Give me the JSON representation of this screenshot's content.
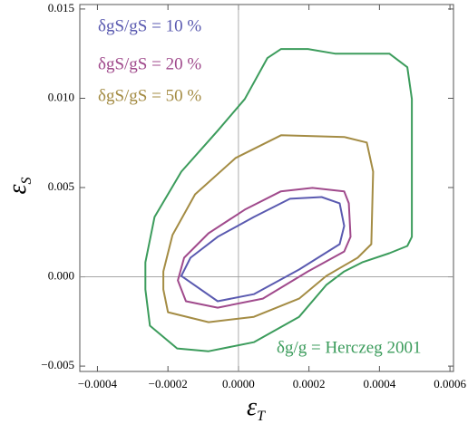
{
  "chart_data": {
    "type": "contour",
    "xlabel": "ε",
    "xlabel_subscript": "T",
    "ylabel": "ε",
    "ylabel_subscript": "S",
    "xlim": [
      -0.00045,
      0.00061
    ],
    "ylim": [
      -0.0053,
      0.01525
    ],
    "xticks": [
      {
        "value": -0.0004,
        "label": "−0.0004"
      },
      {
        "value": -0.0002,
        "label": "−0.0002"
      },
      {
        "value": 0,
        "label": "0.0000"
      },
      {
        "value": 0.0002,
        "label": "0.0002"
      },
      {
        "value": 0.0004,
        "label": "0.0004"
      },
      {
        "value": 0.0006,
        "label": "0.0006"
      }
    ],
    "yticks": [
      {
        "value": -0.005,
        "label": "−0.005"
      },
      {
        "value": 0,
        "label": "0.000"
      },
      {
        "value": 0.005,
        "label": "0.005"
      },
      {
        "value": 0.01,
        "label": "0.010"
      },
      {
        "value": 0.015,
        "label": "0.015"
      }
    ],
    "zero_lines": true,
    "series": [
      {
        "name": "δgS/gS = 10 %",
        "color": "#5a5ab0",
        "x": [
          -0.000162,
          -5.9e-05,
          4.36e-05,
          0.000172,
          0.000287,
          0.0003,
          0.000287,
          0.000236,
          0.000146,
          4.36e-05,
          -5.9e-05,
          -0.000136
        ],
        "y": [
          5e-05,
          -0.00137,
          -0.00097,
          0.00041,
          0.00183,
          0.00285,
          0.00412,
          0.00447,
          0.00437,
          0.00335,
          0.00224,
          0.00107
        ]
      },
      {
        "name": "δgS/gS = 20 %",
        "color": "#a04a8c",
        "x": [
          -0.000172,
          -0.000149,
          -5.9e-05,
          6.92e-05,
          0.000197,
          0.0003,
          0.000318,
          0.000313,
          0.0003,
          0.00021,
          0.00012,
          1.8e-05,
          -8.5e-05,
          -0.000154
        ],
        "y": [
          -0.0002,
          -0.00137,
          -0.00173,
          -0.00122,
          0.0003,
          0.00142,
          0.00224,
          0.00412,
          0.00478,
          0.00498,
          0.00478,
          0.00376,
          0.00244,
          0.00107
        ]
      },
      {
        "name": "δgS/gS = 50 %",
        "color": "#a48c44",
        "x": [
          -0.000213,
          -0.0002,
          -8.46e-05,
          4.36e-05,
          0.000172,
          0.000249,
          0.000338,
          0.000377,
          0.000382,
          0.000364,
          0.0003,
          0.000121,
          -7.7e-06,
          -0.000123,
          -0.000187,
          -0.000213
        ],
        "y": [
          -0.00071,
          -0.00198,
          -0.00254,
          -0.00224,
          -0.00122,
          5e-05,
          0.00107,
          0.00183,
          0.00589,
          0.00752,
          0.00783,
          0.00793,
          0.00666,
          0.00462,
          0.00234,
          0.0003
        ]
      },
      {
        "name": "δg/g = Herczeg 2001",
        "color": "#3c9c5c",
        "x": [
          -0.000264,
          -0.000251,
          -0.000174,
          -8.46e-05,
          4.36e-05,
          0.000172,
          0.000249,
          0.0003,
          0.000351,
          0.000428,
          0.000479,
          0.000492,
          0.000492,
          0.000492,
          0.000479,
          0.000428,
          0.000274,
          0.000197,
          0.000121,
          8.2e-05,
          1.8e-05,
          -5.9e-05,
          -0.000162,
          -0.000238,
          -0.000264
        ],
        "y": [
          -0.00071,
          -0.00274,
          -0.00401,
          -0.00417,
          -0.00366,
          -0.00224,
          -0.00046,
          0.0003,
          0.00081,
          0.00132,
          0.00173,
          0.00224,
          0.00437,
          0.00996,
          0.01174,
          0.0125,
          0.0125,
          0.01276,
          0.01276,
          0.01225,
          0.00996,
          0.00818,
          0.00589,
          0.00335,
          0.00081
        ]
      }
    ]
  }
}
